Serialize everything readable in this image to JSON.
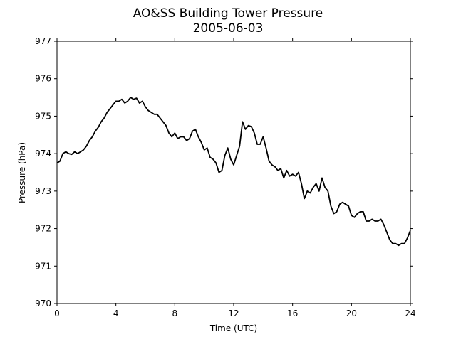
{
  "chart_data": {
    "type": "line",
    "title": "AO&SS Building Tower Pressure",
    "subtitle": "2005-06-03",
    "xlabel": "Time (UTC)",
    "ylabel": "Pressure (hPa)",
    "xlim": [
      0,
      24
    ],
    "xticks": [
      0,
      4,
      8,
      12,
      16,
      20,
      24
    ],
    "ylim": [
      970,
      977
    ],
    "yticks": [
      970,
      971,
      972,
      973,
      974,
      975,
      976,
      977
    ],
    "x": [
      0,
      0.2,
      0.4,
      0.6,
      0.8,
      1.0,
      1.2,
      1.4,
      1.6,
      1.8,
      2.0,
      2.2,
      2.4,
      2.6,
      2.8,
      3.0,
      3.2,
      3.4,
      3.6,
      3.8,
      4.0,
      4.2,
      4.4,
      4.6,
      4.8,
      5.0,
      5.2,
      5.4,
      5.6,
      5.8,
      6.0,
      6.2,
      6.4,
      6.6,
      6.8,
      7.0,
      7.2,
      7.4,
      7.6,
      7.8,
      8.0,
      8.2,
      8.4,
      8.6,
      8.8,
      9.0,
      9.2,
      9.4,
      9.6,
      9.8,
      10.0,
      10.2,
      10.4,
      10.6,
      10.8,
      11.0,
      11.2,
      11.4,
      11.6,
      11.8,
      12.0,
      12.2,
      12.4,
      12.6,
      12.8,
      13.0,
      13.2,
      13.4,
      13.6,
      13.8,
      14.0,
      14.2,
      14.4,
      14.6,
      14.8,
      15.0,
      15.2,
      15.4,
      15.6,
      15.8,
      16.0,
      16.2,
      16.4,
      16.6,
      16.8,
      17.0,
      17.2,
      17.4,
      17.6,
      17.8,
      18.0,
      18.2,
      18.4,
      18.6,
      18.8,
      19.0,
      19.2,
      19.4,
      19.6,
      19.8,
      20.0,
      20.2,
      20.4,
      20.6,
      20.8,
      21.0,
      21.2,
      21.4,
      21.6,
      21.8,
      22.0,
      22.2,
      22.4,
      22.6,
      22.8,
      23.0,
      23.2,
      23.4,
      23.6,
      23.8,
      24.0
    ],
    "series": [
      {
        "name": "Pressure",
        "color": "#000000",
        "values": [
          973.75,
          973.8,
          974.0,
          974.05,
          974.0,
          973.98,
          974.05,
          974.0,
          974.05,
          974.1,
          974.2,
          974.35,
          974.45,
          974.6,
          974.7,
          974.85,
          974.95,
          975.1,
          975.2,
          975.3,
          975.4,
          975.4,
          975.45,
          975.35,
          975.4,
          975.5,
          975.45,
          975.48,
          975.35,
          975.4,
          975.25,
          975.15,
          975.1,
          975.05,
          975.05,
          974.95,
          974.85,
          974.75,
          974.55,
          974.45,
          974.55,
          974.4,
          974.45,
          974.45,
          974.35,
          974.4,
          974.6,
          974.65,
          974.45,
          974.3,
          974.1,
          974.15,
          973.9,
          973.85,
          973.75,
          973.5,
          973.55,
          973.95,
          974.15,
          973.85,
          973.7,
          973.95,
          974.2,
          974.85,
          974.65,
          974.75,
          974.72,
          974.55,
          974.25,
          974.25,
          974.45,
          974.15,
          973.8,
          973.7,
          973.65,
          973.55,
          973.6,
          973.35,
          973.55,
          973.4,
          973.45,
          973.4,
          973.5,
          973.2,
          972.8,
          973.0,
          972.95,
          973.1,
          973.2,
          973.0,
          973.35,
          973.1,
          973.0,
          972.6,
          972.4,
          972.45,
          972.65,
          972.7,
          972.65,
          972.6,
          972.35,
          972.3,
          972.4,
          972.45,
          972.45,
          972.2,
          972.2,
          972.25,
          972.2,
          972.2,
          972.25,
          972.1,
          971.9,
          971.7,
          971.6,
          971.6,
          971.55,
          971.6,
          971.6,
          971.75,
          971.95
        ]
      }
    ]
  }
}
